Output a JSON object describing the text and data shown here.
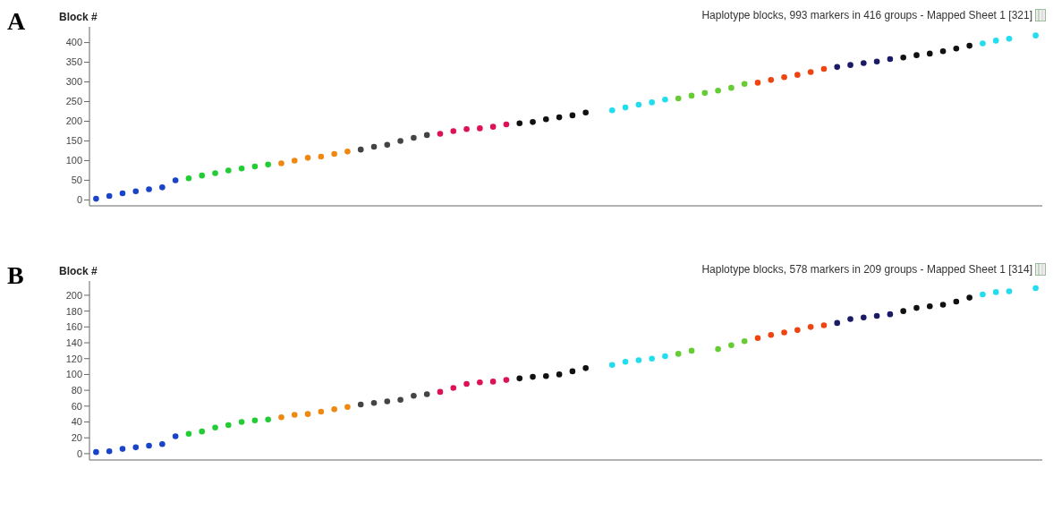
{
  "chart_data": [
    {
      "type": "scatter",
      "title": "Haplotype blocks, 993 markers in 416 groups - Mapped Sheet 1 [321]",
      "ylabel": "Block #",
      "annotations": [
        "A"
      ],
      "marker": "circle",
      "tick_labels": "y",
      "categories": [
        null,
        null,
        null,
        null,
        null,
        null,
        null,
        null,
        null,
        null,
        null,
        null,
        null,
        null,
        null,
        null,
        null,
        null,
        null,
        null,
        null,
        null,
        null,
        null,
        null,
        null,
        null,
        null,
        null,
        null,
        null,
        null,
        null,
        null,
        null,
        null,
        null,
        null,
        null,
        null,
        null,
        null,
        null,
        null,
        null,
        null,
        null,
        null,
        null,
        null,
        null,
        null,
        null,
        null,
        null,
        null,
        null,
        null,
        null,
        null,
        null,
        null,
        null,
        null,
        null,
        null,
        null,
        null,
        null,
        null,
        null,
        null
      ],
      "values": [
        3,
        10,
        17,
        22,
        27,
        32,
        50,
        55,
        62,
        68,
        75,
        80,
        85,
        90,
        93,
        100,
        107,
        110,
        117,
        123,
        128,
        135,
        140,
        150,
        158,
        165,
        168,
        175,
        180,
        182,
        186,
        192,
        195,
        198,
        205,
        210,
        215,
        222,
        null,
        228,
        235,
        242,
        248,
        255,
        258,
        265,
        272,
        278,
        285,
        295,
        298,
        305,
        312,
        318,
        325,
        333,
        338,
        343,
        348,
        352,
        358,
        362,
        368,
        372,
        378,
        385,
        392,
        398,
        405,
        410,
        null,
        418
      ],
      "colors": [
        "#1a44c8",
        "#1a44c8",
        "#1a44c8",
        "#1a44c8",
        "#1a44c8",
        "#1a44c8",
        "#1a44c8",
        "#22cc33",
        "#22cc33",
        "#22cc33",
        "#22cc33",
        "#22cc33",
        "#22cc33",
        "#22cc33",
        "#ee8811",
        "#ee8811",
        "#ee8811",
        "#ee8811",
        "#ee8811",
        "#ee8811",
        "#444444",
        "#444444",
        "#444444",
        "#444444",
        "#444444",
        "#444444",
        "#dd1155",
        "#dd1155",
        "#dd1155",
        "#dd1155",
        "#dd1155",
        "#dd1155",
        "#111111",
        "#111111",
        "#111111",
        "#111111",
        "#111111",
        "#111111",
        null,
        "#22ddee",
        "#22ddee",
        "#22ddee",
        "#22ddee",
        "#22ddee",
        "#66cc33",
        "#66cc33",
        "#66cc33",
        "#66cc33",
        "#66cc33",
        "#66cc33",
        "#ee4411",
        "#ee4411",
        "#ee4411",
        "#ee4411",
        "#ee4411",
        "#ee4411",
        "#1a1a66",
        "#1a1a66",
        "#1a1a66",
        "#1a1a66",
        "#1a1a66",
        "#111111",
        "#111111",
        "#111111",
        "#111111",
        "#111111",
        "#111111",
        "#22ddee",
        "#22ddee",
        "#22ddee",
        null,
        "#22ddee"
      ],
      "ylim": [
        -15,
        440
      ],
      "yticks": [
        0,
        50,
        100,
        150,
        200,
        250,
        300,
        350,
        400
      ]
    },
    {
      "type": "scatter",
      "title": "Haplotype blocks, 578 markers in 209 groups - Mapped Sheet 1 [314]",
      "ylabel": "Block #",
      "annotations": [
        "B"
      ],
      "marker": "circle",
      "tick_labels": "y",
      "categories": [
        null,
        null,
        null,
        null,
        null,
        null,
        null,
        null,
        null,
        null,
        null,
        null,
        null,
        null,
        null,
        null,
        null,
        null,
        null,
        null,
        null,
        null,
        null,
        null,
        null,
        null,
        null,
        null,
        null,
        null,
        null,
        null,
        null,
        null,
        null,
        null,
        null,
        null,
        null,
        null,
        null,
        null,
        null,
        null,
        null,
        null,
        null,
        null,
        null,
        null,
        null,
        null,
        null,
        null,
        null,
        null,
        null,
        null,
        null,
        null,
        null,
        null,
        null,
        null,
        null,
        null,
        null,
        null,
        null,
        null,
        null,
        null
      ],
      "values": [
        2,
        3,
        6,
        8,
        10,
        12,
        22,
        25,
        28,
        33,
        36,
        40,
        42,
        43,
        46,
        49,
        50,
        53,
        56,
        59,
        62,
        64,
        66,
        68,
        73,
        75,
        78,
        83,
        88,
        90,
        91,
        93,
        95,
        97,
        98,
        100,
        104,
        108,
        null,
        112,
        116,
        118,
        120,
        123,
        126,
        130,
        null,
        132,
        137,
        142,
        146,
        150,
        153,
        156,
        160,
        162,
        165,
        170,
        172,
        174,
        176,
        180,
        184,
        186,
        188,
        192,
        197,
        201,
        204,
        205,
        null,
        209
      ],
      "colors": [
        "#1a44c8",
        "#1a44c8",
        "#1a44c8",
        "#1a44c8",
        "#1a44c8",
        "#1a44c8",
        "#1a44c8",
        "#22cc33",
        "#22cc33",
        "#22cc33",
        "#22cc33",
        "#22cc33",
        "#22cc33",
        "#22cc33",
        "#ee8811",
        "#ee8811",
        "#ee8811",
        "#ee8811",
        "#ee8811",
        "#ee8811",
        "#444444",
        "#444444",
        "#444444",
        "#444444",
        "#444444",
        "#444444",
        "#dd1155",
        "#dd1155",
        "#dd1155",
        "#dd1155",
        "#dd1155",
        "#dd1155",
        "#111111",
        "#111111",
        "#111111",
        "#111111",
        "#111111",
        "#111111",
        null,
        "#22ddee",
        "#22ddee",
        "#22ddee",
        "#22ddee",
        "#22ddee",
        "#66cc33",
        "#66cc33",
        null,
        "#66cc33",
        "#66cc33",
        "#66cc33",
        "#ee4411",
        "#ee4411",
        "#ee4411",
        "#ee4411",
        "#ee4411",
        "#ee4411",
        "#1a1a66",
        "#1a1a66",
        "#1a1a66",
        "#1a1a66",
        "#1a1a66",
        "#111111",
        "#111111",
        "#111111",
        "#111111",
        "#111111",
        "#111111",
        "#22ddee",
        "#22ddee",
        "#22ddee",
        null,
        "#22ddee"
      ],
      "ylim": [
        -8,
        218
      ],
      "yticks": [
        0,
        20,
        40,
        60,
        80,
        100,
        120,
        140,
        160,
        180,
        200
      ]
    }
  ]
}
